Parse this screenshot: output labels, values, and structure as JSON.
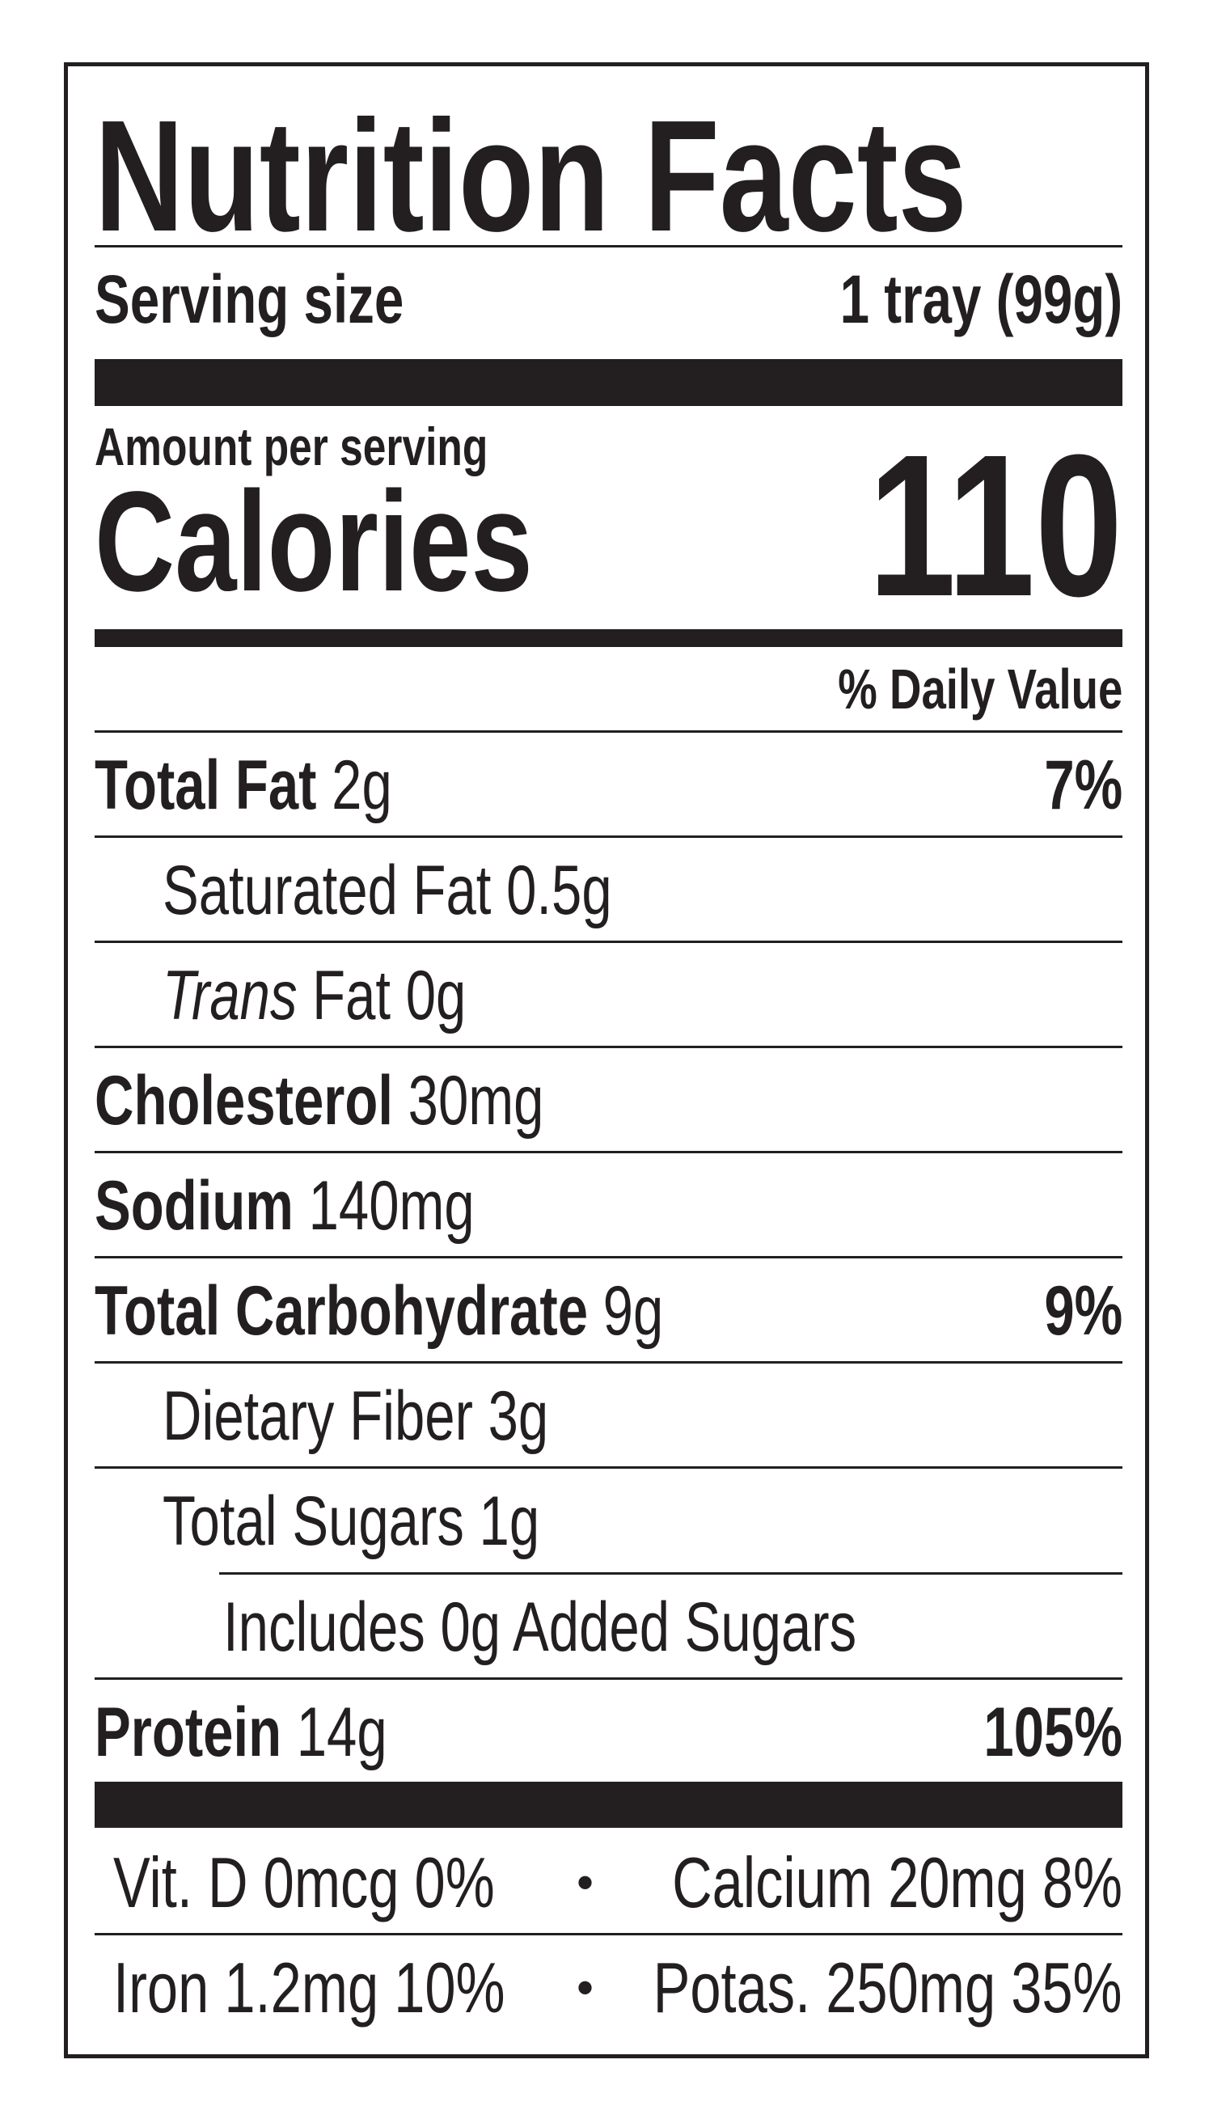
{
  "title": "Nutrition Facts",
  "serving": {
    "label": "Serving size",
    "value": "1 tray (99g)"
  },
  "calories": {
    "amount_label": "Amount per serving",
    "label": "Calories",
    "value": "110"
  },
  "daily_value_header": "% Daily Value",
  "nutrients": [
    {
      "name": "Total Fat",
      "amount": "2g",
      "dv": "7%"
    },
    {
      "name": "Saturated Fat",
      "amount": "0.5g"
    },
    {
      "name": "Trans",
      "amount": "Fat 0g"
    },
    {
      "name": "Cholesterol",
      "amount": "30mg"
    },
    {
      "name": "Sodium",
      "amount": "140mg"
    },
    {
      "name": "Total Carbohydrate",
      "amount": "9g",
      "dv": "9%"
    },
    {
      "name": "Dietary Fiber",
      "amount": "3g"
    },
    {
      "name": "Total Sugars",
      "amount": "1g"
    },
    {
      "name": "Includes 0g Added Sugars"
    },
    {
      "name": "Protein",
      "amount": "14g",
      "dv": "105%"
    }
  ],
  "minerals": [
    {
      "left": "Vit. D 0mcg 0%",
      "right": "Calcium 20mg 8%"
    },
    {
      "left": "Iron 1.2mg 10%",
      "right": "Potas. 250mg 35%"
    }
  ],
  "separator": "•"
}
